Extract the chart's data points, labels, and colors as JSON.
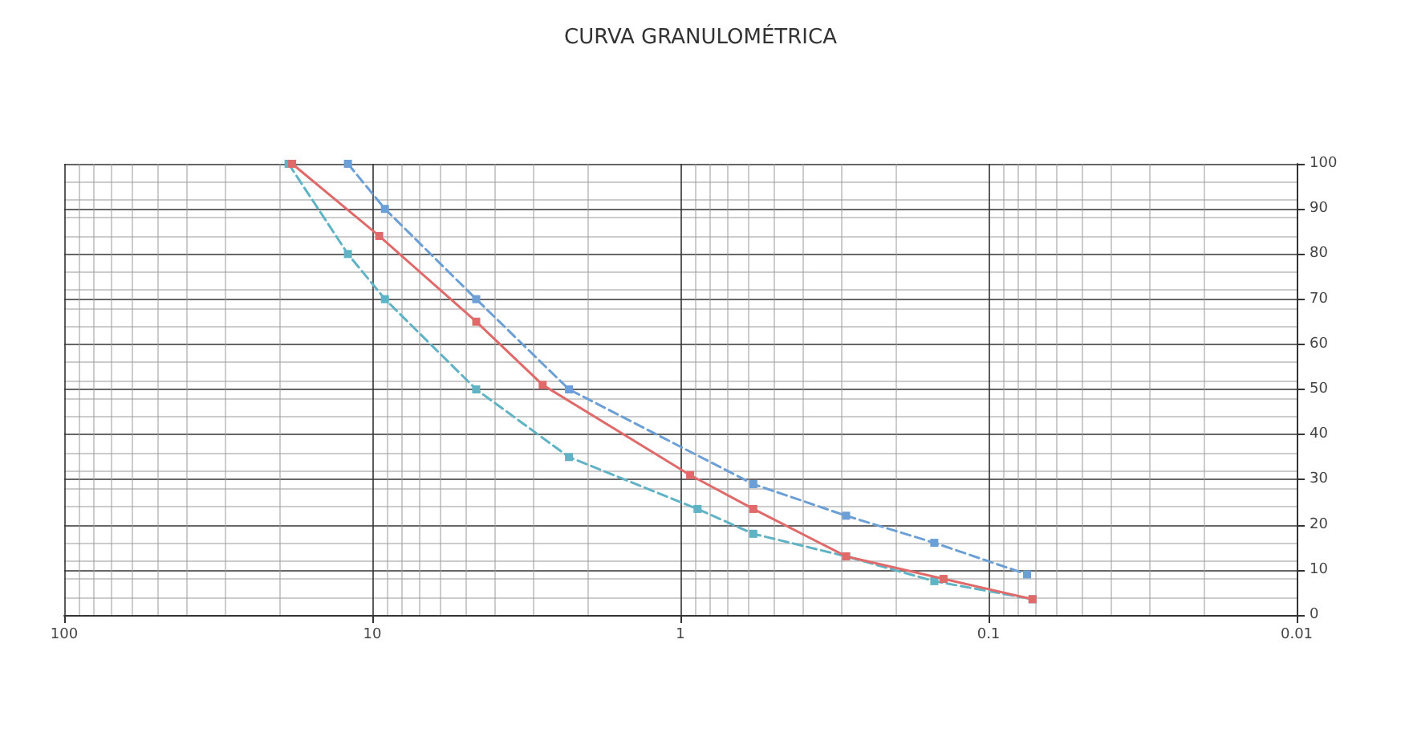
{
  "chart_data": {
    "type": "line",
    "title": "CURVA GRANULOMÉTRICA",
    "log": "x",
    "xlim": [
      100,
      0.01
    ],
    "xticks": [
      100,
      10,
      1,
      0.1,
      0.01
    ],
    "ylim": [
      0,
      100
    ],
    "yticks": [
      0,
      10,
      20,
      30,
      40,
      50,
      60,
      70,
      80,
      90,
      100
    ],
    "grid": true,
    "marker": "square",
    "series": [
      {
        "color": "#6b9fd6",
        "line_style": "dashed",
        "x": [
          12,
          9.1,
          4.6,
          2.3,
          0.58,
          0.29,
          0.15,
          0.075
        ],
        "values": [
          100,
          90,
          70,
          50,
          29,
          22,
          16,
          9
        ]
      },
      {
        "color": "#e06a6a",
        "line_style": "solid",
        "x": [
          18.2,
          9.5,
          4.6,
          2.8,
          0.93,
          0.58,
          0.29,
          0.14,
          0.072
        ],
        "values": [
          100,
          84,
          65,
          51,
          31,
          23.5,
          13,
          8,
          3.5
        ]
      },
      {
        "color": "#5fb3c4",
        "line_style": "dashed",
        "x": [
          18.7,
          12,
          9.1,
          4.6,
          2.3,
          0.88,
          0.58,
          0.29,
          0.15,
          0.072
        ],
        "values": [
          100,
          80,
          70,
          50,
          35,
          23.5,
          18,
          13,
          7.5,
          3.5
        ]
      }
    ]
  }
}
